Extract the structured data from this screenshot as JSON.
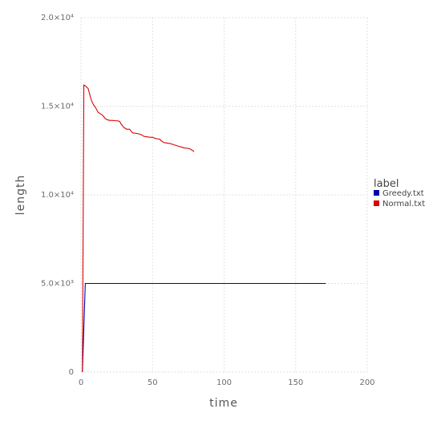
{
  "chart_data": {
    "type": "line",
    "xlabel": "time",
    "ylabel": "length",
    "xlim": [
      0,
      200
    ],
    "ylim": [
      0,
      20000
    ],
    "x_ticks": [
      {
        "value": 0,
        "label": "0"
      },
      {
        "value": 50,
        "label": "50"
      },
      {
        "value": 100,
        "label": "100"
      },
      {
        "value": 150,
        "label": "150"
      },
      {
        "value": 200,
        "label": "200"
      }
    ],
    "y_ticks": [
      {
        "value": 0,
        "label": "0"
      },
      {
        "value": 5000,
        "label": "5.0×10³"
      },
      {
        "value": 10000,
        "label": "1.0×10⁴"
      },
      {
        "value": 15000,
        "label": "1.5×10⁴"
      },
      {
        "value": 20000,
        "label": "2.0×10⁴"
      }
    ],
    "grid": true,
    "legend": {
      "title": "label",
      "position": "right"
    },
    "series": [
      {
        "name": "Greedy.txt",
        "color": "#0000aa",
        "points": [
          [
            1,
            0
          ],
          [
            3,
            5000
          ],
          [
            171,
            5000
          ]
        ]
      },
      {
        "name": "Normal.txt",
        "color": "#dd0000",
        "points": [
          [
            1,
            0
          ],
          [
            2,
            16200
          ],
          [
            3,
            16150
          ],
          [
            5,
            16000
          ],
          [
            6,
            15700
          ],
          [
            7,
            15400
          ],
          [
            8,
            15200
          ],
          [
            9,
            15050
          ],
          [
            10,
            14950
          ],
          [
            11,
            14800
          ],
          [
            12,
            14650
          ],
          [
            13,
            14600
          ],
          [
            14,
            14550
          ],
          [
            15,
            14500
          ],
          [
            16,
            14400
          ],
          [
            17,
            14300
          ],
          [
            18,
            14250
          ],
          [
            20,
            14200
          ],
          [
            22,
            14200
          ],
          [
            24,
            14180
          ],
          [
            25,
            14180
          ],
          [
            27,
            14150
          ],
          [
            28,
            14000
          ],
          [
            29,
            13900
          ],
          [
            30,
            13800
          ],
          [
            32,
            13700
          ],
          [
            34,
            13700
          ],
          [
            35,
            13600
          ],
          [
            36,
            13500
          ],
          [
            40,
            13450
          ],
          [
            42,
            13400
          ],
          [
            43,
            13350
          ],
          [
            44,
            13300
          ],
          [
            48,
            13250
          ],
          [
            50,
            13250
          ],
          [
            52,
            13180
          ],
          [
            54,
            13150
          ],
          [
            55,
            13150
          ],
          [
            56,
            13050
          ],
          [
            58,
            12950
          ],
          [
            62,
            12900
          ],
          [
            64,
            12850
          ],
          [
            66,
            12800
          ],
          [
            68,
            12750
          ],
          [
            70,
            12700
          ],
          [
            72,
            12650
          ],
          [
            74,
            12630
          ],
          [
            76,
            12600
          ],
          [
            78,
            12500
          ],
          [
            79,
            12450
          ]
        ]
      }
    ]
  }
}
